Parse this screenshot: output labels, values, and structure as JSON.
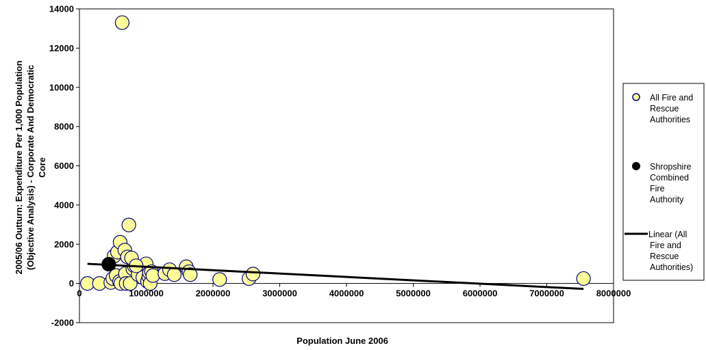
{
  "chart_data": {
    "type": "scatter",
    "title": "",
    "xlabel": "Population June 2006",
    "ylabel": [
      "2005/06 Outturn: Expenditure Per 1,000 Population",
      "(Objective Analysis) - Corporate And Democratic",
      "Core"
    ],
    "xlim": [
      0,
      8000000
    ],
    "ylim": [
      -2000,
      14000
    ],
    "x_ticks": [
      0,
      1000000,
      2000000,
      3000000,
      4000000,
      5000000,
      6000000,
      7000000,
      8000000
    ],
    "y_ticks": [
      -2000,
      0,
      2000,
      4000,
      6000,
      8000,
      10000,
      12000,
      14000
    ],
    "x_tick_labels": [
      "0",
      "1000000",
      "2000000",
      "3000000",
      "4000000",
      "5000000",
      "6000000",
      "7000000",
      "8000000"
    ],
    "y_tick_labels": [
      "-2000",
      "0",
      "2000",
      "4000",
      "6000",
      "8000",
      "10000",
      "12000",
      "14000"
    ],
    "grid": false,
    "legend_position": "right",
    "series": [
      {
        "name": "All Fire and Rescue Authorities",
        "legend_lines": [
          "All Fire and",
          "Rescue",
          "Authorities"
        ],
        "marker": "circle",
        "color": "#FFFF99",
        "edge_color": "#000080",
        "points": [
          [
            640000,
            13300
          ],
          [
            120000,
            0
          ],
          [
            300000,
            0
          ],
          [
            470000,
            50
          ],
          [
            500000,
            250
          ],
          [
            550000,
            400
          ],
          [
            600000,
            100
          ],
          [
            620000,
            0
          ],
          [
            690000,
            500
          ],
          [
            700000,
            0
          ],
          [
            760000,
            0
          ],
          [
            800000,
            750
          ],
          [
            820000,
            900
          ],
          [
            880000,
            450
          ],
          [
            950000,
            300
          ],
          [
            1000000,
            1000
          ],
          [
            1020000,
            100
          ],
          [
            1040000,
            350
          ],
          [
            1050000,
            550
          ],
          [
            1060000,
            0
          ],
          [
            1080000,
            600
          ],
          [
            1100000,
            400
          ],
          [
            1280000,
            500
          ],
          [
            1350000,
            700
          ],
          [
            1420000,
            450
          ],
          [
            1600000,
            850
          ],
          [
            1640000,
            600
          ],
          [
            1660000,
            450
          ],
          [
            2100000,
            200
          ],
          [
            2540000,
            250
          ],
          [
            2600000,
            480
          ],
          [
            7550000,
            250
          ],
          [
            520000,
            1400
          ],
          [
            570000,
            1600
          ],
          [
            610000,
            2100
          ],
          [
            680000,
            1700
          ],
          [
            720000,
            1350
          ],
          [
            740000,
            2980
          ],
          [
            780000,
            1300
          ],
          [
            850000,
            900
          ]
        ]
      },
      {
        "name": "Shropshire Combined Fire Authority",
        "legend_lines": [
          "Shropshire",
          "Combined",
          "Fire",
          "Authority"
        ],
        "marker": "circle",
        "color": "#000000",
        "edge_color": "#000000",
        "points": [
          [
            440000,
            980
          ]
        ]
      }
    ],
    "trendline": {
      "name": "Linear (All Fire and Rescue Authorities)",
      "legend_lines": [
        "Linear (All",
        "Fire and",
        "Rescue",
        "Authorities)"
      ],
      "type": "linear",
      "color": "#000000",
      "x": [
        120000,
        7550000
      ],
      "y": [
        1000,
        -280
      ]
    }
  }
}
